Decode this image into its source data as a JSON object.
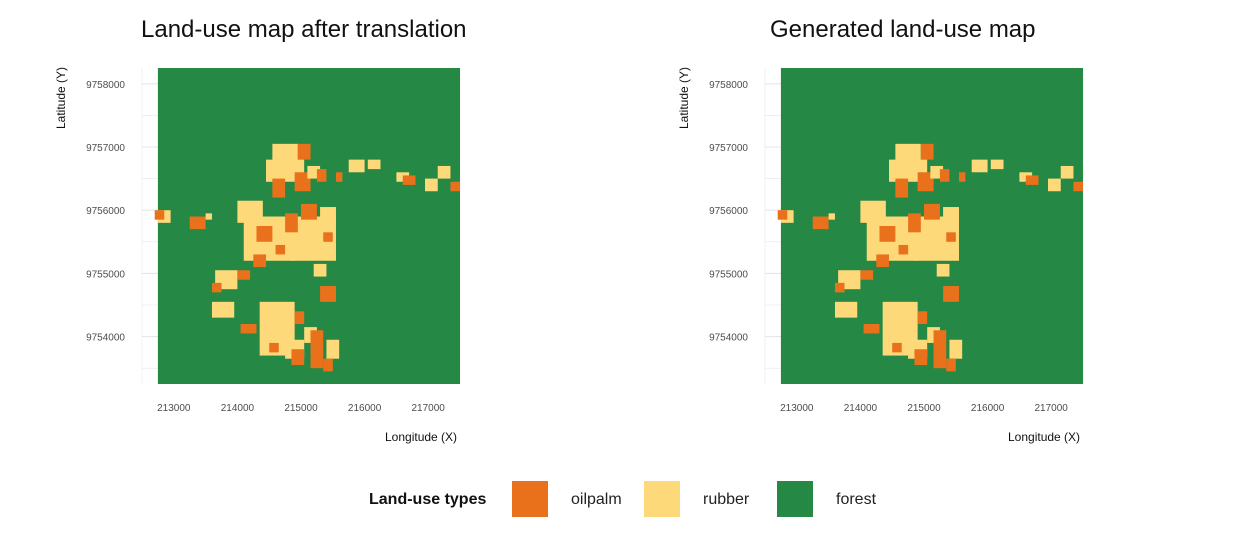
{
  "colors": {
    "oilpalm": "#e9711c",
    "rubber": "#fdd97a",
    "forest": "#258845",
    "grid": "#e6e6e6",
    "tick_text": "#4d4d4d"
  },
  "legend": {
    "title": "Land-use types",
    "items": [
      {
        "label": "oilpalm",
        "color": "#e9711c"
      },
      {
        "label": "rubber",
        "color": "#fdd97a"
      },
      {
        "label": "forest",
        "color": "#258845"
      }
    ]
  },
  "chart_data": [
    {
      "type": "heatmap",
      "title": "Land-use map after translation",
      "xlabel": "Longitude (X)",
      "ylabel": "Latitude (Y)",
      "x_ticks": [
        213000,
        214000,
        215000,
        216000,
        217000
      ],
      "y_ticks": [
        9754000,
        9755000,
        9756000,
        9757000,
        9758000
      ],
      "xlim": [
        212500,
        217500
      ],
      "ylim": [
        9753250,
        9758250
      ],
      "background_class": "forest",
      "grid": true,
      "patches": [
        {
          "class": "rubber",
          "x": [
            214550,
            214950
          ],
          "y": [
            9756700,
            9757050
          ]
        },
        {
          "class": "oilpalm",
          "x": [
            214950,
            215150
          ],
          "y": [
            9756800,
            9757050
          ]
        },
        {
          "class": "rubber",
          "x": [
            214450,
            215050
          ],
          "y": [
            9756450,
            9756800
          ]
        },
        {
          "class": "oilpalm",
          "x": [
            214550,
            214750
          ],
          "y": [
            9756200,
            9756500
          ]
        },
        {
          "class": "oilpalm",
          "x": [
            214900,
            215150
          ],
          "y": [
            9756300,
            9756600
          ]
        },
        {
          "class": "rubber",
          "x": [
            215100,
            215300
          ],
          "y": [
            9756500,
            9756700
          ]
        },
        {
          "class": "oilpalm",
          "x": [
            215250,
            215400
          ],
          "y": [
            9756450,
            9756650
          ]
        },
        {
          "class": "rubber",
          "x": [
            214000,
            214400
          ],
          "y": [
            9755800,
            9756150
          ]
        },
        {
          "class": "rubber",
          "x": [
            214100,
            214900
          ],
          "y": [
            9755200,
            9755900
          ]
        },
        {
          "class": "rubber",
          "x": [
            214850,
            215550
          ],
          "y": [
            9755200,
            9755900
          ]
        },
        {
          "class": "oilpalm",
          "x": [
            214300,
            214550
          ],
          "y": [
            9755500,
            9755750
          ]
        },
        {
          "class": "oilpalm",
          "x": [
            214750,
            214950
          ],
          "y": [
            9755650,
            9755950
          ]
        },
        {
          "class": "oilpalm",
          "x": [
            215000,
            215250
          ],
          "y": [
            9755850,
            9756100
          ]
        },
        {
          "class": "oilpalm",
          "x": [
            214250,
            214450
          ],
          "y": [
            9755100,
            9755300
          ]
        },
        {
          "class": "oilpalm",
          "x": [
            214600,
            214750
          ],
          "y": [
            9755300,
            9755450
          ]
        },
        {
          "class": "rubber",
          "x": [
            215300,
            215550
          ],
          "y": [
            9755800,
            9756050
          ]
        },
        {
          "class": "oilpalm",
          "x": [
            215350,
            215500
          ],
          "y": [
            9755500,
            9755650
          ]
        },
        {
          "class": "rubber",
          "x": [
            215200,
            215400
          ],
          "y": [
            9754950,
            9755150
          ]
        },
        {
          "class": "oilpalm",
          "x": [
            213250,
            213500
          ],
          "y": [
            9755700,
            9755900
          ]
        },
        {
          "class": "rubber",
          "x": [
            212750,
            212950
          ],
          "y": [
            9755800,
            9756000
          ]
        },
        {
          "class": "oilpalm",
          "x": [
            212700,
            212850
          ],
          "y": [
            9755850,
            9756000
          ]
        },
        {
          "class": "rubber",
          "x": [
            213500,
            213600
          ],
          "y": [
            9755850,
            9755950
          ]
        },
        {
          "class": "rubber",
          "x": [
            213650,
            214000
          ],
          "y": [
            9754750,
            9755050
          ]
        },
        {
          "class": "oilpalm",
          "x": [
            213600,
            213750
          ],
          "y": [
            9754700,
            9754850
          ]
        },
        {
          "class": "rubber",
          "x": [
            213600,
            213950
          ],
          "y": [
            9754300,
            9754550
          ]
        },
        {
          "class": "oilpalm",
          "x": [
            214000,
            214200
          ],
          "y": [
            9754900,
            9755050
          ]
        },
        {
          "class": "oilpalm",
          "x": [
            215300,
            215550
          ],
          "y": [
            9754550,
            9754800
          ]
        },
        {
          "class": "rubber",
          "x": [
            215750,
            216000
          ],
          "y": [
            9756600,
            9756800
          ]
        },
        {
          "class": "oilpalm",
          "x": [
            215550,
            215650
          ],
          "y": [
            9756450,
            9756600
          ]
        },
        {
          "class": "rubber",
          "x": [
            216050,
            216250
          ],
          "y": [
            9756650,
            9756800
          ]
        },
        {
          "class": "rubber",
          "x": [
            216500,
            216700
          ],
          "y": [
            9756450,
            9756600
          ]
        },
        {
          "class": "oilpalm",
          "x": [
            216600,
            216800
          ],
          "y": [
            9756400,
            9756550
          ]
        },
        {
          "class": "rubber",
          "x": [
            216950,
            217150
          ],
          "y": [
            9756300,
            9756500
          ]
        },
        {
          "class": "oilpalm",
          "x": [
            217350,
            217500
          ],
          "y": [
            9756300,
            9756450
          ]
        },
        {
          "class": "rubber",
          "x": [
            217150,
            217350
          ],
          "y": [
            9756500,
            9756700
          ]
        },
        {
          "class": "rubber",
          "x": [
            214350,
            214900
          ],
          "y": [
            9753700,
            9754550
          ]
        },
        {
          "class": "oilpalm",
          "x": [
            214900,
            215050
          ],
          "y": [
            9754200,
            9754400
          ]
        },
        {
          "class": "rubber",
          "x": [
            215050,
            215250
          ],
          "y": [
            9753900,
            9754150
          ]
        },
        {
          "class": "oilpalm",
          "x": [
            215150,
            215350
          ],
          "y": [
            9753500,
            9754100
          ]
        },
        {
          "class": "rubber",
          "x": [
            214750,
            215050
          ],
          "y": [
            9753650,
            9753950
          ]
        },
        {
          "class": "oilpalm",
          "x": [
            214050,
            214300
          ],
          "y": [
            9754050,
            9754200
          ]
        },
        {
          "class": "oilpalm",
          "x": [
            214850,
            215050
          ],
          "y": [
            9753550,
            9753800
          ]
        },
        {
          "class": "rubber",
          "x": [
            215400,
            215600
          ],
          "y": [
            9753650,
            9753950
          ]
        },
        {
          "class": "oilpalm",
          "x": [
            215350,
            215500
          ],
          "y": [
            9753450,
            9753650
          ]
        },
        {
          "class": "oilpalm",
          "x": [
            214500,
            214650
          ],
          "y": [
            9753750,
            9753900
          ]
        }
      ]
    },
    {
      "type": "heatmap",
      "title": "Generated land-use map",
      "xlabel": "Longitude (X)",
      "ylabel": "Latitude (Y)",
      "x_ticks": [
        213000,
        214000,
        215000,
        216000,
        217000
      ],
      "y_ticks": [
        9754000,
        9755000,
        9756000,
        9757000,
        9758000
      ],
      "xlim": [
        212500,
        217500
      ],
      "ylim": [
        9753250,
        9758250
      ],
      "background_class": "forest",
      "grid": true,
      "patches": [
        {
          "class": "rubber",
          "x": [
            214550,
            214950
          ],
          "y": [
            9756700,
            9757050
          ]
        },
        {
          "class": "oilpalm",
          "x": [
            214950,
            215150
          ],
          "y": [
            9756800,
            9757050
          ]
        },
        {
          "class": "rubber",
          "x": [
            214450,
            215050
          ],
          "y": [
            9756450,
            9756800
          ]
        },
        {
          "class": "oilpalm",
          "x": [
            214550,
            214750
          ],
          "y": [
            9756200,
            9756500
          ]
        },
        {
          "class": "oilpalm",
          "x": [
            214900,
            215150
          ],
          "y": [
            9756300,
            9756600
          ]
        },
        {
          "class": "rubber",
          "x": [
            215100,
            215300
          ],
          "y": [
            9756500,
            9756700
          ]
        },
        {
          "class": "oilpalm",
          "x": [
            215250,
            215400
          ],
          "y": [
            9756450,
            9756650
          ]
        },
        {
          "class": "rubber",
          "x": [
            214000,
            214400
          ],
          "y": [
            9755800,
            9756150
          ]
        },
        {
          "class": "rubber",
          "x": [
            214100,
            214900
          ],
          "y": [
            9755200,
            9755900
          ]
        },
        {
          "class": "rubber",
          "x": [
            214850,
            215550
          ],
          "y": [
            9755200,
            9755900
          ]
        },
        {
          "class": "oilpalm",
          "x": [
            214300,
            214550
          ],
          "y": [
            9755500,
            9755750
          ]
        },
        {
          "class": "oilpalm",
          "x": [
            214750,
            214950
          ],
          "y": [
            9755650,
            9755950
          ]
        },
        {
          "class": "oilpalm",
          "x": [
            215000,
            215250
          ],
          "y": [
            9755850,
            9756100
          ]
        },
        {
          "class": "oilpalm",
          "x": [
            214250,
            214450
          ],
          "y": [
            9755100,
            9755300
          ]
        },
        {
          "class": "oilpalm",
          "x": [
            214600,
            214750
          ],
          "y": [
            9755300,
            9755450
          ]
        },
        {
          "class": "rubber",
          "x": [
            215300,
            215550
          ],
          "y": [
            9755800,
            9756050
          ]
        },
        {
          "class": "oilpalm",
          "x": [
            215350,
            215500
          ],
          "y": [
            9755500,
            9755650
          ]
        },
        {
          "class": "rubber",
          "x": [
            215200,
            215400
          ],
          "y": [
            9754950,
            9755150
          ]
        },
        {
          "class": "oilpalm",
          "x": [
            213250,
            213500
          ],
          "y": [
            9755700,
            9755900
          ]
        },
        {
          "class": "rubber",
          "x": [
            212750,
            212950
          ],
          "y": [
            9755800,
            9756000
          ]
        },
        {
          "class": "oilpalm",
          "x": [
            212700,
            212850
          ],
          "y": [
            9755850,
            9756000
          ]
        },
        {
          "class": "rubber",
          "x": [
            213500,
            213600
          ],
          "y": [
            9755850,
            9755950
          ]
        },
        {
          "class": "rubber",
          "x": [
            213650,
            214000
          ],
          "y": [
            9754750,
            9755050
          ]
        },
        {
          "class": "oilpalm",
          "x": [
            213600,
            213750
          ],
          "y": [
            9754700,
            9754850
          ]
        },
        {
          "class": "rubber",
          "x": [
            213600,
            213950
          ],
          "y": [
            9754300,
            9754550
          ]
        },
        {
          "class": "oilpalm",
          "x": [
            214000,
            214200
          ],
          "y": [
            9754900,
            9755050
          ]
        },
        {
          "class": "oilpalm",
          "x": [
            215300,
            215550
          ],
          "y": [
            9754550,
            9754800
          ]
        },
        {
          "class": "rubber",
          "x": [
            215750,
            216000
          ],
          "y": [
            9756600,
            9756800
          ]
        },
        {
          "class": "oilpalm",
          "x": [
            215550,
            215650
          ],
          "y": [
            9756450,
            9756600
          ]
        },
        {
          "class": "rubber",
          "x": [
            216050,
            216250
          ],
          "y": [
            9756650,
            9756800
          ]
        },
        {
          "class": "rubber",
          "x": [
            216500,
            216700
          ],
          "y": [
            9756450,
            9756600
          ]
        },
        {
          "class": "oilpalm",
          "x": [
            216600,
            216800
          ],
          "y": [
            9756400,
            9756550
          ]
        },
        {
          "class": "rubber",
          "x": [
            216950,
            217150
          ],
          "y": [
            9756300,
            9756500
          ]
        },
        {
          "class": "oilpalm",
          "x": [
            217350,
            217500
          ],
          "y": [
            9756300,
            9756450
          ]
        },
        {
          "class": "rubber",
          "x": [
            217150,
            217350
          ],
          "y": [
            9756500,
            9756700
          ]
        },
        {
          "class": "rubber",
          "x": [
            214350,
            214900
          ],
          "y": [
            9753700,
            9754550
          ]
        },
        {
          "class": "oilpalm",
          "x": [
            214900,
            215050
          ],
          "y": [
            9754200,
            9754400
          ]
        },
        {
          "class": "rubber",
          "x": [
            215050,
            215250
          ],
          "y": [
            9753900,
            9754150
          ]
        },
        {
          "class": "oilpalm",
          "x": [
            215150,
            215350
          ],
          "y": [
            9753500,
            9754100
          ]
        },
        {
          "class": "rubber",
          "x": [
            214750,
            215050
          ],
          "y": [
            9753650,
            9753950
          ]
        },
        {
          "class": "oilpalm",
          "x": [
            214050,
            214300
          ],
          "y": [
            9754050,
            9754200
          ]
        },
        {
          "class": "oilpalm",
          "x": [
            214850,
            215050
          ],
          "y": [
            9753550,
            9753800
          ]
        },
        {
          "class": "rubber",
          "x": [
            215400,
            215600
          ],
          "y": [
            9753650,
            9753950
          ]
        },
        {
          "class": "oilpalm",
          "x": [
            215350,
            215500
          ],
          "y": [
            9753450,
            9753650
          ]
        },
        {
          "class": "oilpalm",
          "x": [
            214500,
            214650
          ],
          "y": [
            9753750,
            9753900
          ]
        }
      ]
    }
  ]
}
